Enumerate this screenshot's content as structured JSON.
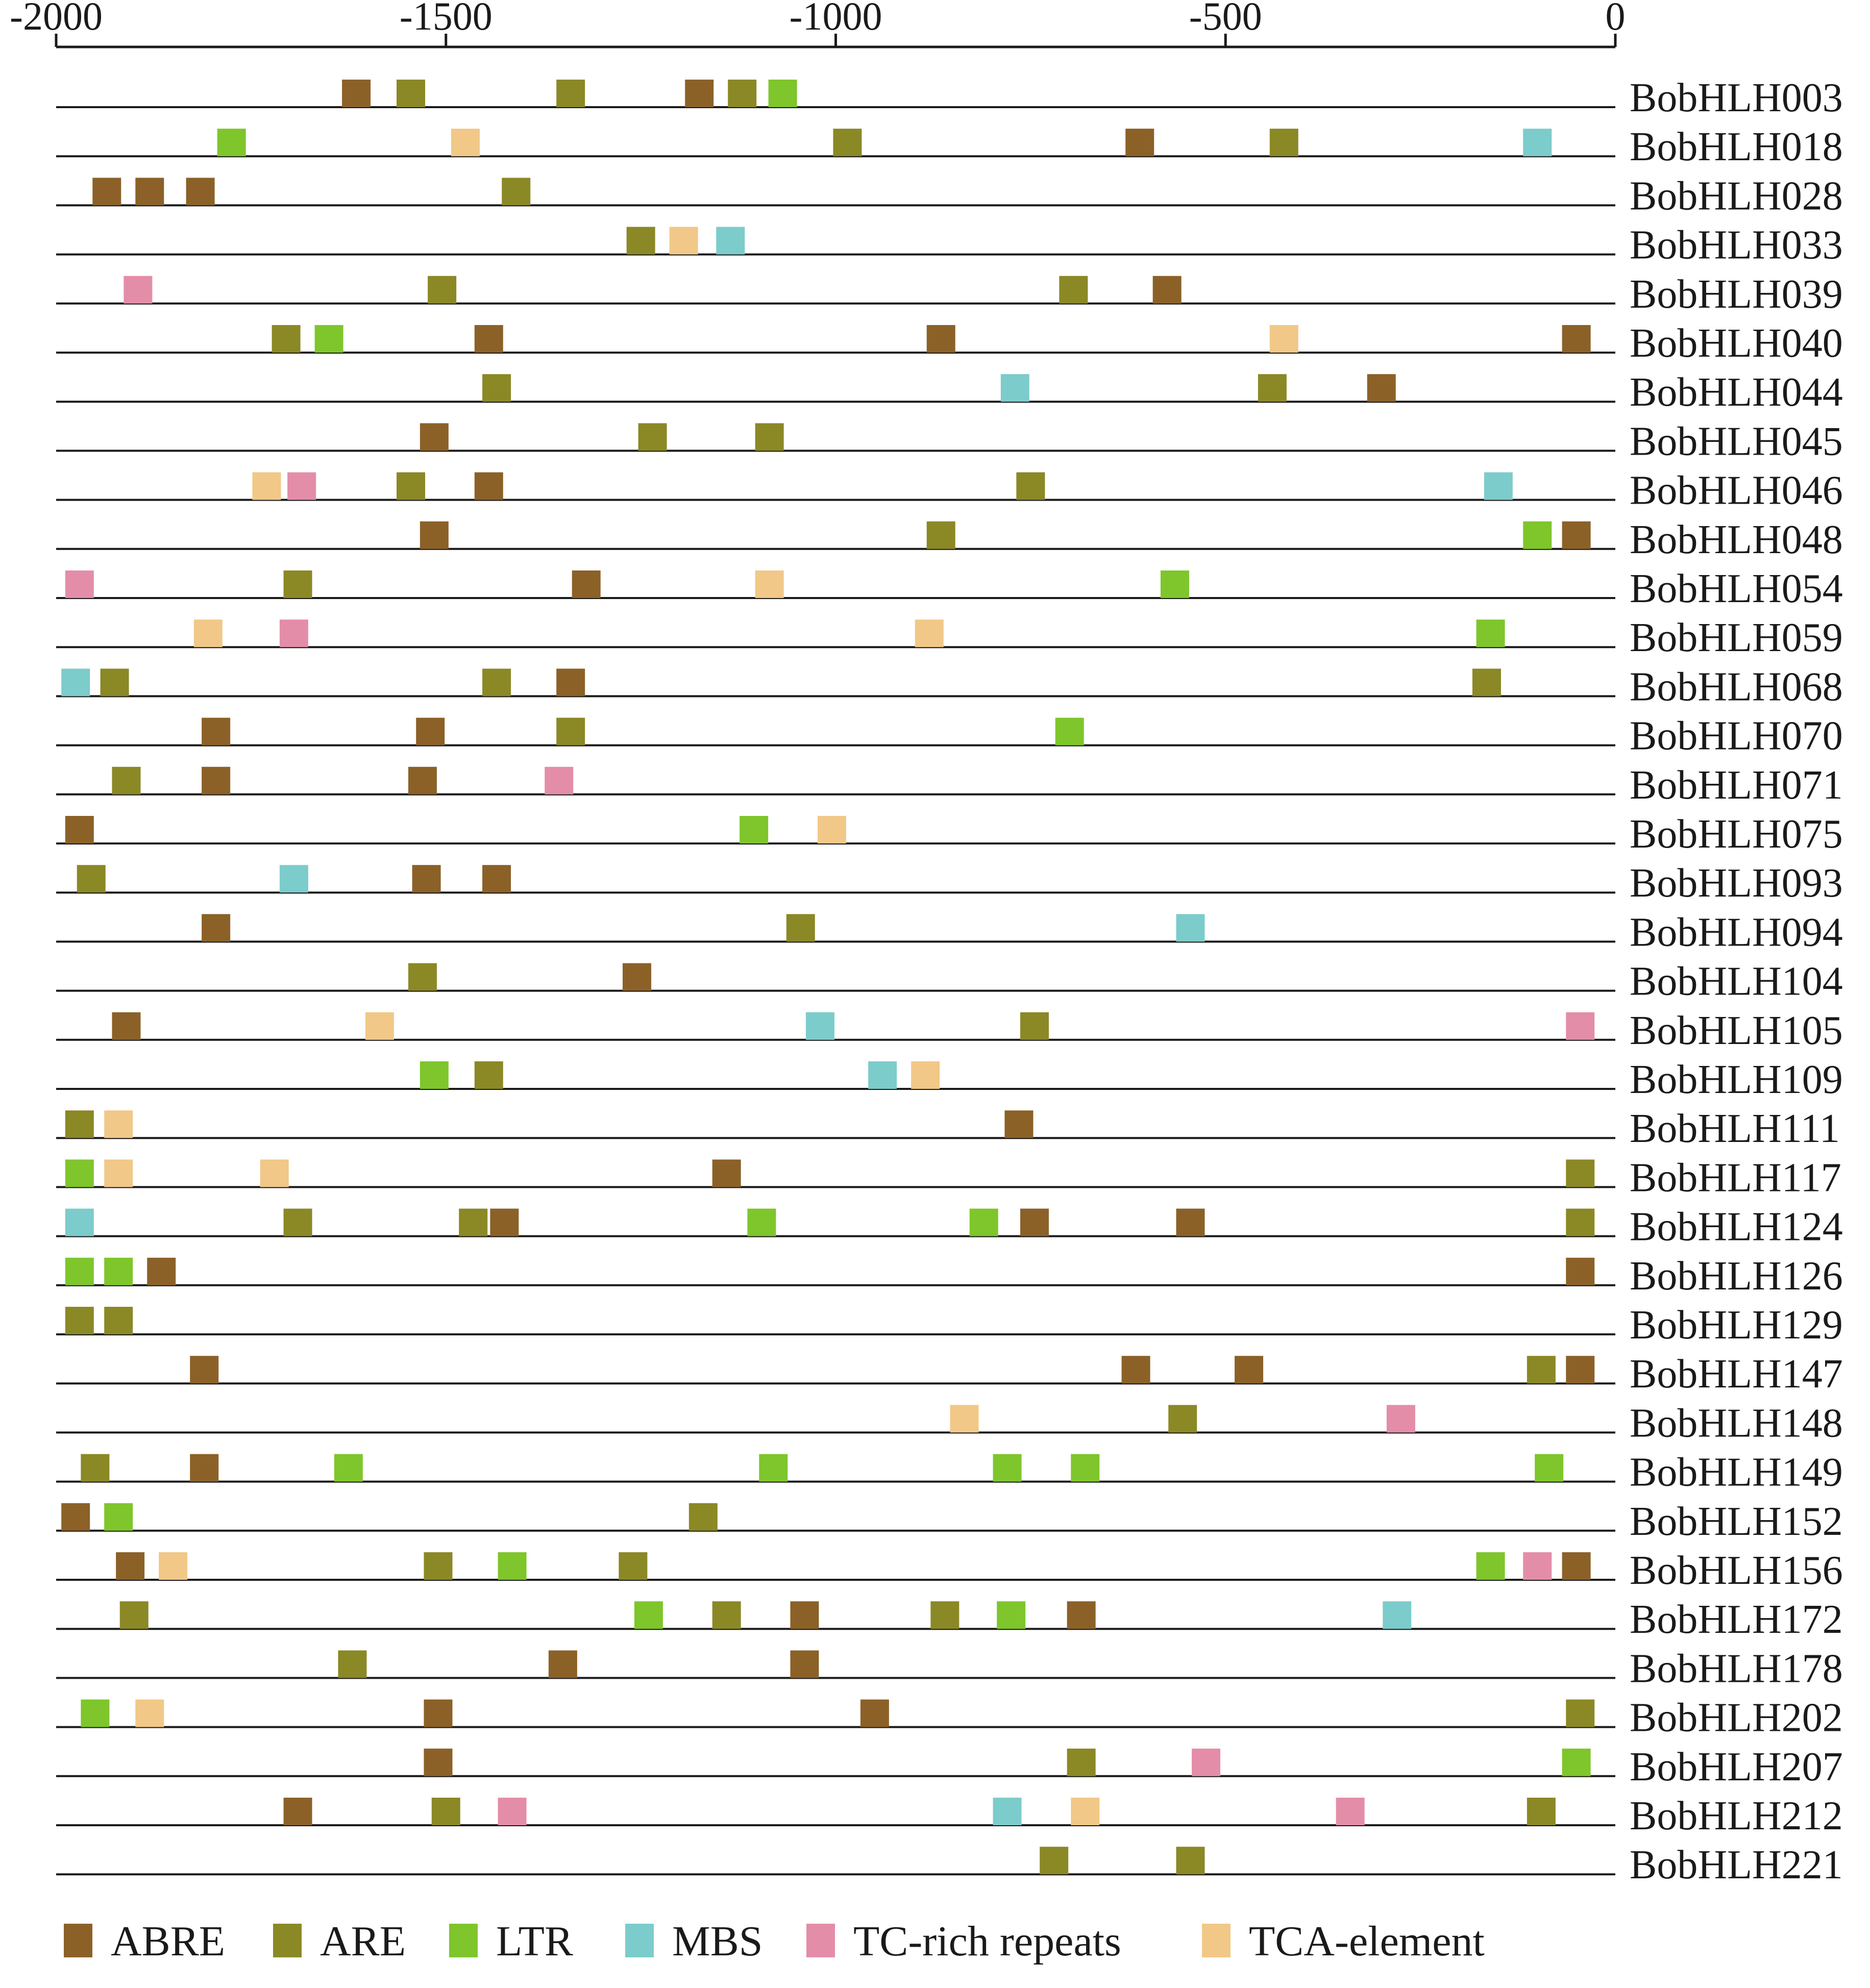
{
  "chart_data": {
    "type": "scatter",
    "title": "",
    "xlabel": "",
    "ylabel": "",
    "xlim": [
      -2000,
      0
    ],
    "x_ticks": [
      -2000,
      -1500,
      -1000,
      -500,
      0
    ],
    "x_tick_labels": [
      "-2000",
      "-1500",
      "-1000",
      "-500",
      "0"
    ],
    "legend_position": "bottom",
    "element_types": [
      {
        "name": "ABRE",
        "color": "#8B6128"
      },
      {
        "name": "ARE",
        "color": "#8B8826"
      },
      {
        "name": "LTR",
        "color": "#7EC62B"
      },
      {
        "name": "MBS",
        "color": "#7CCCCB"
      },
      {
        "name": "TC-rich repeats",
        "color": "#E48DA8"
      },
      {
        "name": "TCA-element",
        "color": "#F1C888"
      }
    ],
    "genes": [
      {
        "name": "BobHLH003",
        "elements": [
          {
            "pos": -1615,
            "type": "ABRE"
          },
          {
            "pos": -1545,
            "type": "ARE"
          },
          {
            "pos": -1340,
            "type": "ARE"
          },
          {
            "pos": -1175,
            "type": "ABRE"
          },
          {
            "pos": -1120,
            "type": "ARE"
          },
          {
            "pos": -1068,
            "type": "LTR"
          }
        ]
      },
      {
        "name": "BobHLH018",
        "elements": [
          {
            "pos": -1775,
            "type": "LTR"
          },
          {
            "pos": -1475,
            "type": "TCA-element"
          },
          {
            "pos": -985,
            "type": "ARE"
          },
          {
            "pos": -610,
            "type": "ABRE"
          },
          {
            "pos": -425,
            "type": "ARE"
          },
          {
            "pos": -100,
            "type": "MBS"
          }
        ]
      },
      {
        "name": "BobHLH028",
        "elements": [
          {
            "pos": -1935,
            "type": "ABRE"
          },
          {
            "pos": -1880,
            "type": "ABRE"
          },
          {
            "pos": -1815,
            "type": "ABRE"
          },
          {
            "pos": -1410,
            "type": "ARE"
          }
        ]
      },
      {
        "name": "BobHLH033",
        "elements": [
          {
            "pos": -1250,
            "type": "ARE"
          },
          {
            "pos": -1195,
            "type": "TCA-element"
          },
          {
            "pos": -1135,
            "type": "MBS"
          }
        ]
      },
      {
        "name": "BobHLH039",
        "elements": [
          {
            "pos": -1895,
            "type": "TC-rich repeats"
          },
          {
            "pos": -1505,
            "type": "ARE"
          },
          {
            "pos": -695,
            "type": "ARE"
          },
          {
            "pos": -575,
            "type": "ABRE"
          }
        ]
      },
      {
        "name": "BobHLH040",
        "elements": [
          {
            "pos": -1705,
            "type": "ARE"
          },
          {
            "pos": -1650,
            "type": "LTR"
          },
          {
            "pos": -1445,
            "type": "ABRE"
          },
          {
            "pos": -865,
            "type": "ABRE"
          },
          {
            "pos": -425,
            "type": "TCA-element"
          },
          {
            "pos": -50,
            "type": "ABRE"
          }
        ]
      },
      {
        "name": "BobHLH044",
        "elements": [
          {
            "pos": -1435,
            "type": "ARE"
          },
          {
            "pos": -770,
            "type": "MBS"
          },
          {
            "pos": -440,
            "type": "ARE"
          },
          {
            "pos": -300,
            "type": "ABRE"
          }
        ]
      },
      {
        "name": "BobHLH045",
        "elements": [
          {
            "pos": -1515,
            "type": "ABRE"
          },
          {
            "pos": -1235,
            "type": "ARE"
          },
          {
            "pos": -1085,
            "type": "ARE"
          }
        ]
      },
      {
        "name": "BobHLH046",
        "elements": [
          {
            "pos": -1730,
            "type": "TCA-element"
          },
          {
            "pos": -1685,
            "type": "TC-rich repeats"
          },
          {
            "pos": -1545,
            "type": "ARE"
          },
          {
            "pos": -1445,
            "type": "ABRE"
          },
          {
            "pos": -750,
            "type": "ARE"
          },
          {
            "pos": -150,
            "type": "MBS"
          }
        ]
      },
      {
        "name": "BobHLH048",
        "elements": [
          {
            "pos": -1515,
            "type": "ABRE"
          },
          {
            "pos": -865,
            "type": "ARE"
          },
          {
            "pos": -100,
            "type": "LTR"
          },
          {
            "pos": -50,
            "type": "ABRE"
          }
        ]
      },
      {
        "name": "BobHLH054",
        "elements": [
          {
            "pos": -1970,
            "type": "TC-rich repeats"
          },
          {
            "pos": -1690,
            "type": "ARE"
          },
          {
            "pos": -1320,
            "type": "ABRE"
          },
          {
            "pos": -1085,
            "type": "TCA-element"
          },
          {
            "pos": -565,
            "type": "LTR"
          }
        ]
      },
      {
        "name": "BobHLH059",
        "elements": [
          {
            "pos": -1805,
            "type": "TCA-element"
          },
          {
            "pos": -1695,
            "type": "TC-rich repeats"
          },
          {
            "pos": -880,
            "type": "TCA-element"
          },
          {
            "pos": -160,
            "type": "LTR"
          }
        ]
      },
      {
        "name": "BobHLH068",
        "elements": [
          {
            "pos": -1975,
            "type": "MBS"
          },
          {
            "pos": -1925,
            "type": "ARE"
          },
          {
            "pos": -1435,
            "type": "ARE"
          },
          {
            "pos": -1340,
            "type": "ABRE"
          },
          {
            "pos": -165,
            "type": "ARE"
          }
        ]
      },
      {
        "name": "BobHLH070",
        "elements": [
          {
            "pos": -1795,
            "type": "ABRE"
          },
          {
            "pos": -1520,
            "type": "ABRE"
          },
          {
            "pos": -1340,
            "type": "ARE"
          },
          {
            "pos": -700,
            "type": "LTR"
          }
        ]
      },
      {
        "name": "BobHLH071",
        "elements": [
          {
            "pos": -1910,
            "type": "ARE"
          },
          {
            "pos": -1795,
            "type": "ABRE"
          },
          {
            "pos": -1530,
            "type": "ABRE"
          },
          {
            "pos": -1355,
            "type": "TC-rich repeats"
          }
        ]
      },
      {
        "name": "BobHLH075",
        "elements": [
          {
            "pos": -1970,
            "type": "ABRE"
          },
          {
            "pos": -1105,
            "type": "LTR"
          },
          {
            "pos": -1005,
            "type": "TCA-element"
          }
        ]
      },
      {
        "name": "BobHLH093",
        "elements": [
          {
            "pos": -1955,
            "type": "ARE"
          },
          {
            "pos": -1695,
            "type": "MBS"
          },
          {
            "pos": -1525,
            "type": "ABRE"
          },
          {
            "pos": -1435,
            "type": "ABRE"
          }
        ]
      },
      {
        "name": "BobHLH094",
        "elements": [
          {
            "pos": -1795,
            "type": "ABRE"
          },
          {
            "pos": -1045,
            "type": "ARE"
          },
          {
            "pos": -545,
            "type": "MBS"
          }
        ]
      },
      {
        "name": "BobHLH104",
        "elements": [
          {
            "pos": -1530,
            "type": "ARE"
          },
          {
            "pos": -1255,
            "type": "ABRE"
          }
        ]
      },
      {
        "name": "BobHLH105",
        "elements": [
          {
            "pos": -1910,
            "type": "ABRE"
          },
          {
            "pos": -1585,
            "type": "TCA-element"
          },
          {
            "pos": -1020,
            "type": "MBS"
          },
          {
            "pos": -745,
            "type": "ARE"
          },
          {
            "pos": -45,
            "type": "TC-rich repeats"
          }
        ]
      },
      {
        "name": "BobHLH109",
        "elements": [
          {
            "pos": -1515,
            "type": "LTR"
          },
          {
            "pos": -1445,
            "type": "ARE"
          },
          {
            "pos": -940,
            "type": "MBS"
          },
          {
            "pos": -885,
            "type": "TCA-element"
          }
        ]
      },
      {
        "name": "BobHLH111",
        "elements": [
          {
            "pos": -1970,
            "type": "ARE"
          },
          {
            "pos": -1920,
            "type": "TCA-element"
          },
          {
            "pos": -765,
            "type": "ABRE"
          }
        ]
      },
      {
        "name": "BobHLH117",
        "elements": [
          {
            "pos": -1970,
            "type": "LTR"
          },
          {
            "pos": -1920,
            "type": "TCA-element"
          },
          {
            "pos": -1720,
            "type": "TCA-element"
          },
          {
            "pos": -1140,
            "type": "ABRE"
          },
          {
            "pos": -45,
            "type": "ARE"
          }
        ]
      },
      {
        "name": "BobHLH124",
        "elements": [
          {
            "pos": -1970,
            "type": "MBS"
          },
          {
            "pos": -1690,
            "type": "ARE"
          },
          {
            "pos": -1465,
            "type": "ARE"
          },
          {
            "pos": -1425,
            "type": "ABRE"
          },
          {
            "pos": -1095,
            "type": "LTR"
          },
          {
            "pos": -810,
            "type": "LTR"
          },
          {
            "pos": -745,
            "type": "ABRE"
          },
          {
            "pos": -545,
            "type": "ABRE"
          },
          {
            "pos": -45,
            "type": "ARE"
          }
        ]
      },
      {
        "name": "BobHLH126",
        "elements": [
          {
            "pos": -1970,
            "type": "LTR"
          },
          {
            "pos": -1920,
            "type": "LTR"
          },
          {
            "pos": -1865,
            "type": "ABRE"
          },
          {
            "pos": -45,
            "type": "ABRE"
          }
        ]
      },
      {
        "name": "BobHLH129",
        "elements": [
          {
            "pos": -1970,
            "type": "ARE"
          },
          {
            "pos": -1920,
            "type": "ARE"
          }
        ]
      },
      {
        "name": "BobHLH147",
        "elements": [
          {
            "pos": -1810,
            "type": "ABRE"
          },
          {
            "pos": -615,
            "type": "ABRE"
          },
          {
            "pos": -470,
            "type": "ABRE"
          },
          {
            "pos": -95,
            "type": "ARE"
          },
          {
            "pos": -45,
            "type": "ABRE"
          }
        ]
      },
      {
        "name": "BobHLH148",
        "elements": [
          {
            "pos": -835,
            "type": "TCA-element"
          },
          {
            "pos": -555,
            "type": "ARE"
          },
          {
            "pos": -275,
            "type": "TC-rich repeats"
          }
        ]
      },
      {
        "name": "BobHLH149",
        "elements": [
          {
            "pos": -1950,
            "type": "ARE"
          },
          {
            "pos": -1810,
            "type": "ABRE"
          },
          {
            "pos": -1625,
            "type": "LTR"
          },
          {
            "pos": -1080,
            "type": "LTR"
          },
          {
            "pos": -780,
            "type": "LTR"
          },
          {
            "pos": -680,
            "type": "LTR"
          },
          {
            "pos": -85,
            "type": "LTR"
          }
        ]
      },
      {
        "name": "BobHLH152",
        "elements": [
          {
            "pos": -1975,
            "type": "ABRE"
          },
          {
            "pos": -1920,
            "type": "LTR"
          },
          {
            "pos": -1170,
            "type": "ARE"
          }
        ]
      },
      {
        "name": "BobHLH156",
        "elements": [
          {
            "pos": -1905,
            "type": "ABRE"
          },
          {
            "pos": -1850,
            "type": "TCA-element"
          },
          {
            "pos": -1510,
            "type": "ARE"
          },
          {
            "pos": -1415,
            "type": "LTR"
          },
          {
            "pos": -1260,
            "type": "ARE"
          },
          {
            "pos": -160,
            "type": "LTR"
          },
          {
            "pos": -100,
            "type": "TC-rich repeats"
          },
          {
            "pos": -50,
            "type": "ABRE"
          }
        ]
      },
      {
        "name": "BobHLH172",
        "elements": [
          {
            "pos": -1900,
            "type": "ARE"
          },
          {
            "pos": -1240,
            "type": "LTR"
          },
          {
            "pos": -1140,
            "type": "ARE"
          },
          {
            "pos": -1040,
            "type": "ABRE"
          },
          {
            "pos": -860,
            "type": "ARE"
          },
          {
            "pos": -775,
            "type": "LTR"
          },
          {
            "pos": -685,
            "type": "ABRE"
          },
          {
            "pos": -280,
            "type": "MBS"
          }
        ]
      },
      {
        "name": "BobHLH178",
        "elements": [
          {
            "pos": -1620,
            "type": "ARE"
          },
          {
            "pos": -1350,
            "type": "ABRE"
          },
          {
            "pos": -1040,
            "type": "ABRE"
          }
        ]
      },
      {
        "name": "BobHLH202",
        "elements": [
          {
            "pos": -1950,
            "type": "LTR"
          },
          {
            "pos": -1880,
            "type": "TCA-element"
          },
          {
            "pos": -1510,
            "type": "ABRE"
          },
          {
            "pos": -950,
            "type": "ABRE"
          },
          {
            "pos": -45,
            "type": "ARE"
          }
        ]
      },
      {
        "name": "BobHLH207",
        "elements": [
          {
            "pos": -1510,
            "type": "ABRE"
          },
          {
            "pos": -685,
            "type": "ARE"
          },
          {
            "pos": -525,
            "type": "TC-rich repeats"
          },
          {
            "pos": -50,
            "type": "LTR"
          }
        ]
      },
      {
        "name": "BobHLH212",
        "elements": [
          {
            "pos": -1690,
            "type": "ABRE"
          },
          {
            "pos": -1500,
            "type": "ARE"
          },
          {
            "pos": -1415,
            "type": "TC-rich repeats"
          },
          {
            "pos": -780,
            "type": "MBS"
          },
          {
            "pos": -680,
            "type": "TCA-element"
          },
          {
            "pos": -340,
            "type": "TC-rich repeats"
          },
          {
            "pos": -95,
            "type": "ARE"
          }
        ]
      },
      {
        "name": "BobHLH221",
        "elements": [
          {
            "pos": -720,
            "type": "ARE"
          },
          {
            "pos": -545,
            "type": "ARE"
          }
        ]
      }
    ]
  }
}
